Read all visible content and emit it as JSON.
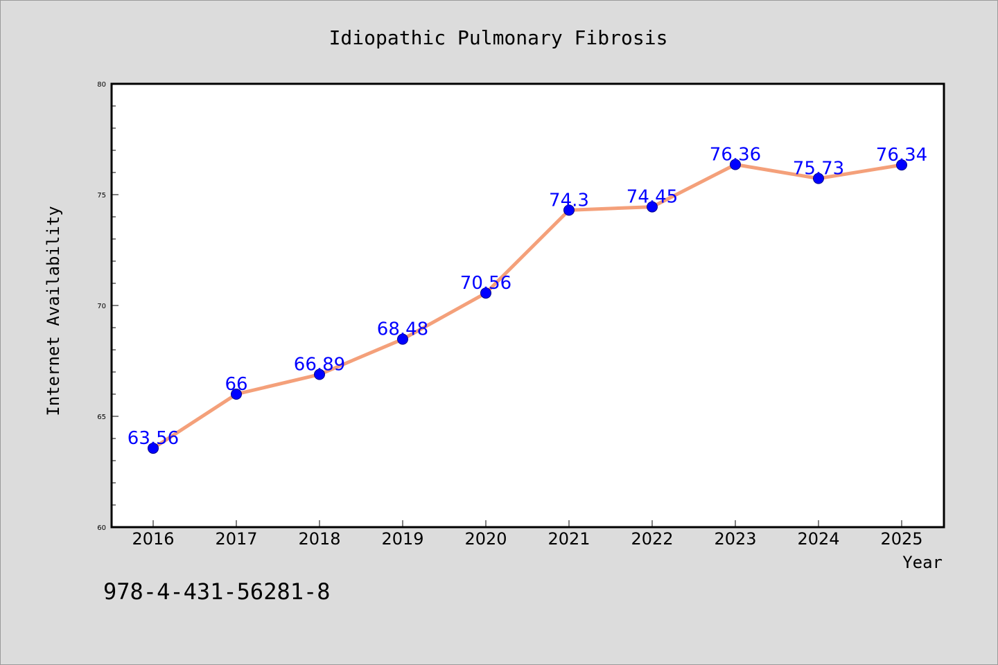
{
  "chart_data": {
    "type": "line",
    "title": "Idiopathic Pulmonary Fibrosis",
    "xlabel": "Year",
    "ylabel": "Internet Availability",
    "categories": [
      "2016",
      "2017",
      "2018",
      "2019",
      "2020",
      "2021",
      "2022",
      "2023",
      "2024",
      "2025"
    ],
    "values": [
      63.56,
      66,
      66.89,
      68.48,
      70.56,
      74.3,
      74.45,
      76.36,
      75.73,
      76.34
    ],
    "data_labels": [
      "63.56",
      "66",
      "66.89",
      "68.48",
      "70.56",
      "74.3",
      "74.45",
      "76.36",
      "75.73",
      "76.34"
    ],
    "ylim": [
      60,
      80
    ],
    "yticks": [
      "60",
      "65",
      "70",
      "75",
      "80"
    ],
    "grid": false,
    "legend": "none",
    "colors": {
      "line": "#f4a07a",
      "marker": "#0000ff",
      "data_label": "#0000ff",
      "background": "#dcdcdc",
      "plot_area": "#ffffff"
    }
  },
  "footnote": "978-4-431-56281-8"
}
